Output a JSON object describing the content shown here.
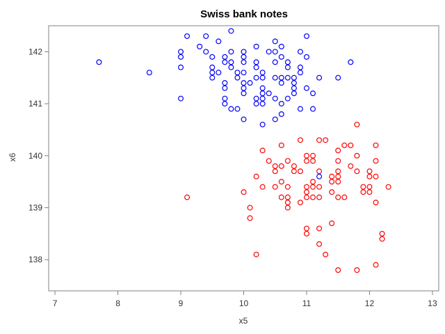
{
  "chart_data": {
    "type": "scatter",
    "title": "Swiss bank notes",
    "xlabel": "x5",
    "ylabel": "x6",
    "xlim": [
      6.9,
      13.1
    ],
    "ylim": [
      137.4,
      142.5
    ],
    "xticks": [
      7,
      8,
      9,
      10,
      11,
      12,
      13
    ],
    "yticks": [
      138,
      139,
      140,
      141,
      142
    ],
    "grid": false,
    "legend": "none",
    "series": [
      {
        "color": "#0000ff",
        "points": [
          [
            7.7,
            141.8
          ],
          [
            8.5,
            141.6
          ],
          [
            9.0,
            141.1
          ],
          [
            9.0,
            141.7
          ],
          [
            9.0,
            141.9
          ],
          [
            9.0,
            142.0
          ],
          [
            9.1,
            142.3
          ],
          [
            9.3,
            142.1
          ],
          [
            9.4,
            142.0
          ],
          [
            9.4,
            142.3
          ],
          [
            9.5,
            141.5
          ],
          [
            9.5,
            141.6
          ],
          [
            9.5,
            141.7
          ],
          [
            9.5,
            141.9
          ],
          [
            9.6,
            141.6
          ],
          [
            9.6,
            142.2
          ],
          [
            9.7,
            141.0
          ],
          [
            9.7,
            141.1
          ],
          [
            9.7,
            141.3
          ],
          [
            9.7,
            141.4
          ],
          [
            9.7,
            141.8
          ],
          [
            9.7,
            141.9
          ],
          [
            9.8,
            140.9
          ],
          [
            9.8,
            141.7
          ],
          [
            9.8,
            141.8
          ],
          [
            9.8,
            142.0
          ],
          [
            9.8,
            142.4
          ],
          [
            9.9,
            140.9
          ],
          [
            9.9,
            141.5
          ],
          [
            9.9,
            141.6
          ],
          [
            10.0,
            140.7
          ],
          [
            10.0,
            141.2
          ],
          [
            10.0,
            141.3
          ],
          [
            10.0,
            141.4
          ],
          [
            10.0,
            141.6
          ],
          [
            10.0,
            141.8
          ],
          [
            10.0,
            141.9
          ],
          [
            10.0,
            142.0
          ],
          [
            10.1,
            141.4
          ],
          [
            10.2,
            141.0
          ],
          [
            10.2,
            141.1
          ],
          [
            10.2,
            141.5
          ],
          [
            10.2,
            141.7
          ],
          [
            10.2,
            141.8
          ],
          [
            10.2,
            142.1
          ],
          [
            10.3,
            140.6
          ],
          [
            10.3,
            141.0
          ],
          [
            10.3,
            141.1
          ],
          [
            10.3,
            141.2
          ],
          [
            10.3,
            141.3
          ],
          [
            10.3,
            141.5
          ],
          [
            10.3,
            141.6
          ],
          [
            10.4,
            141.2
          ],
          [
            10.4,
            142.0
          ],
          [
            10.5,
            140.7
          ],
          [
            10.5,
            141.1
          ],
          [
            10.5,
            141.5
          ],
          [
            10.5,
            141.8
          ],
          [
            10.5,
            142.0
          ],
          [
            10.5,
            142.2
          ],
          [
            10.6,
            140.8
          ],
          [
            10.6,
            141.0
          ],
          [
            10.6,
            141.4
          ],
          [
            10.6,
            141.5
          ],
          [
            10.6,
            141.9
          ],
          [
            10.6,
            142.1
          ],
          [
            10.7,
            141.1
          ],
          [
            10.7,
            141.5
          ],
          [
            10.7,
            141.7
          ],
          [
            10.7,
            141.8
          ],
          [
            10.8,
            141.2
          ],
          [
            10.8,
            141.3
          ],
          [
            10.8,
            141.4
          ],
          [
            10.8,
            141.5
          ],
          [
            10.9,
            140.9
          ],
          [
            10.9,
            141.6
          ],
          [
            10.9,
            141.7
          ],
          [
            10.9,
            142.0
          ],
          [
            11.0,
            141.3
          ],
          [
            11.0,
            141.9
          ],
          [
            11.0,
            142.3
          ],
          [
            11.1,
            140.9
          ],
          [
            11.1,
            141.2
          ],
          [
            11.2,
            141.5
          ],
          [
            11.2,
            139.6
          ],
          [
            11.5,
            141.5
          ],
          [
            11.7,
            141.8
          ]
        ]
      },
      {
        "color": "#ff0000",
        "points": [
          [
            9.1,
            139.2
          ],
          [
            10.0,
            139.3
          ],
          [
            10.1,
            138.8
          ],
          [
            10.1,
            139.0
          ],
          [
            10.2,
            138.1
          ],
          [
            10.2,
            139.6
          ],
          [
            10.3,
            139.4
          ],
          [
            10.3,
            140.1
          ],
          [
            10.4,
            139.9
          ],
          [
            10.5,
            139.4
          ],
          [
            10.5,
            139.7
          ],
          [
            10.5,
            139.8
          ],
          [
            10.6,
            139.2
          ],
          [
            10.6,
            139.5
          ],
          [
            10.6,
            139.8
          ],
          [
            10.6,
            140.2
          ],
          [
            10.7,
            139.0
          ],
          [
            10.7,
            139.1
          ],
          [
            10.7,
            139.2
          ],
          [
            10.7,
            139.4
          ],
          [
            10.7,
            139.9
          ],
          [
            10.8,
            139.7
          ],
          [
            10.8,
            139.8
          ],
          [
            10.9,
            139.1
          ],
          [
            10.9,
            139.7
          ],
          [
            10.9,
            140.3
          ],
          [
            11.0,
            138.5
          ],
          [
            11.0,
            138.6
          ],
          [
            11.0,
            139.2
          ],
          [
            11.0,
            139.3
          ],
          [
            11.0,
            139.4
          ],
          [
            11.0,
            139.9
          ],
          [
            11.0,
            140.0
          ],
          [
            11.1,
            139.2
          ],
          [
            11.1,
            139.4
          ],
          [
            11.1,
            139.5
          ],
          [
            11.1,
            139.9
          ],
          [
            11.1,
            140.0
          ],
          [
            11.2,
            138.3
          ],
          [
            11.2,
            138.6
          ],
          [
            11.2,
            139.2
          ],
          [
            11.2,
            139.4
          ],
          [
            11.2,
            139.7
          ],
          [
            11.2,
            140.3
          ],
          [
            11.3,
            138.1
          ],
          [
            11.3,
            140.3
          ],
          [
            11.4,
            138.7
          ],
          [
            11.4,
            139.3
          ],
          [
            11.4,
            139.5
          ],
          [
            11.4,
            139.6
          ],
          [
            11.5,
            137.8
          ],
          [
            11.5,
            139.2
          ],
          [
            11.5,
            139.5
          ],
          [
            11.5,
            139.6
          ],
          [
            11.5,
            139.7
          ],
          [
            11.5,
            139.9
          ],
          [
            11.5,
            140.1
          ],
          [
            11.6,
            139.2
          ],
          [
            11.6,
            140.2
          ],
          [
            11.7,
            139.8
          ],
          [
            11.7,
            140.2
          ],
          [
            11.8,
            137.8
          ],
          [
            11.8,
            139.7
          ],
          [
            11.8,
            140.0
          ],
          [
            11.8,
            140.6
          ],
          [
            11.9,
            139.3
          ],
          [
            11.9,
            139.4
          ],
          [
            12.0,
            139.3
          ],
          [
            12.0,
            139.4
          ],
          [
            12.0,
            139.6
          ],
          [
            12.0,
            139.7
          ],
          [
            12.1,
            137.9
          ],
          [
            12.1,
            139.1
          ],
          [
            12.1,
            139.6
          ],
          [
            12.1,
            139.9
          ],
          [
            12.1,
            140.2
          ],
          [
            12.2,
            138.4
          ],
          [
            12.2,
            138.5
          ],
          [
            12.3,
            139.4
          ]
        ]
      }
    ]
  }
}
